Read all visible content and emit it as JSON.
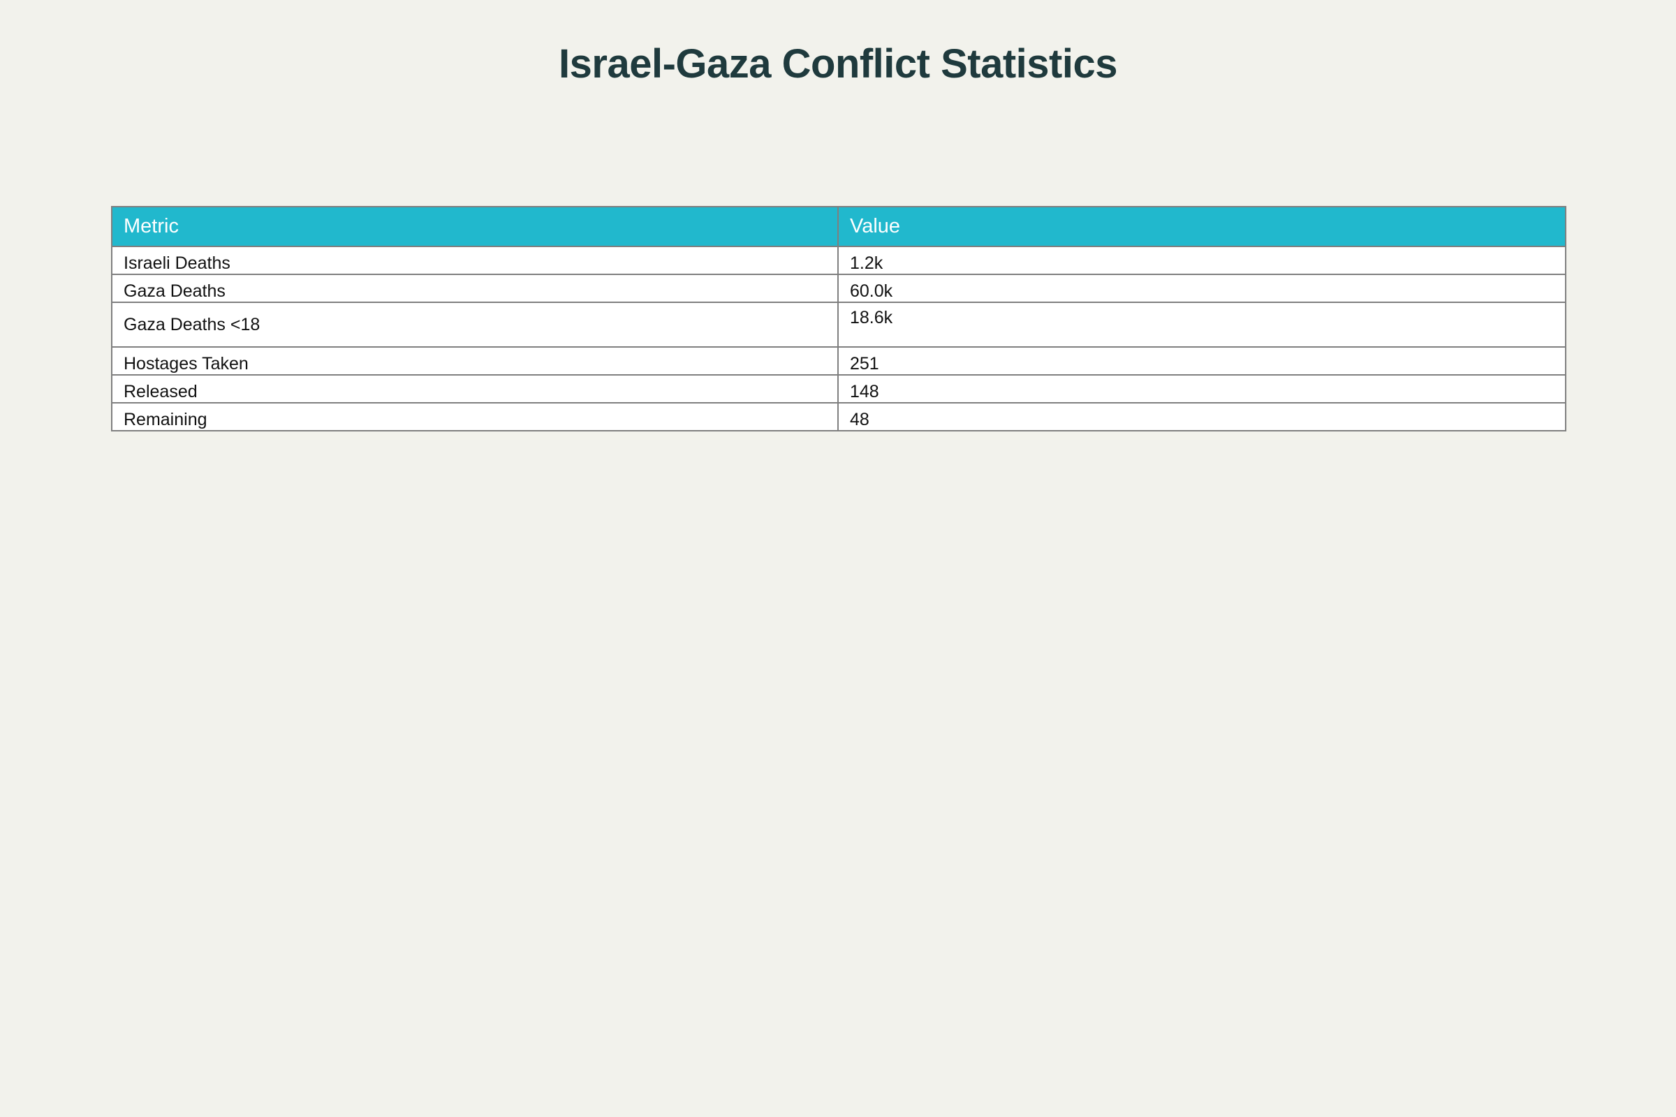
{
  "title": "Israel-Gaza Conflict Statistics",
  "colors": {
    "background": "#f2f2ec",
    "title": "#1f3a3d",
    "header_fill": "#21b8cd",
    "header_text": "#ffffff",
    "cell_fill": "#ffffff",
    "border": "#7f7f7f"
  },
  "chart_data": {
    "type": "table",
    "columns": [
      "Metric",
      "Value"
    ],
    "rows": [
      [
        "Israeli Deaths",
        "1.2k"
      ],
      [
        "Gaza Deaths",
        "60.0k"
      ],
      [
        "Gaza Deaths <18",
        "18.6k"
      ],
      [
        "Hostages Taken",
        "251"
      ],
      [
        "Released",
        "148"
      ],
      [
        "Remaining",
        "48"
      ]
    ]
  }
}
